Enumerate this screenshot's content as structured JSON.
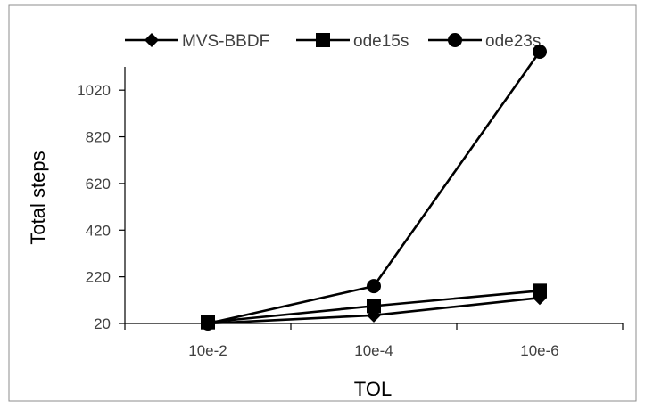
{
  "chart_data": {
    "type": "line",
    "title": "",
    "xlabel": "TOL",
    "ylabel": "Total steps",
    "categories": [
      "10e-2",
      "10e-4",
      "10e-6"
    ],
    "ylim": [
      20,
      1120
    ],
    "yticks": [
      20,
      220,
      420,
      620,
      820,
      1020
    ],
    "grid": false,
    "legend_position": "top",
    "series": [
      {
        "name": "MVS-BBDF",
        "marker": "diamond",
        "values": [
          20,
          55,
          130
        ],
        "color": "#000000"
      },
      {
        "name": "ode15s",
        "marker": "square",
        "values": [
          25,
          95,
          160
        ],
        "color": "#000000"
      },
      {
        "name": "ode23s",
        "marker": "circle",
        "values": [
          20,
          180,
          1185
        ],
        "color": "#000000"
      }
    ]
  }
}
